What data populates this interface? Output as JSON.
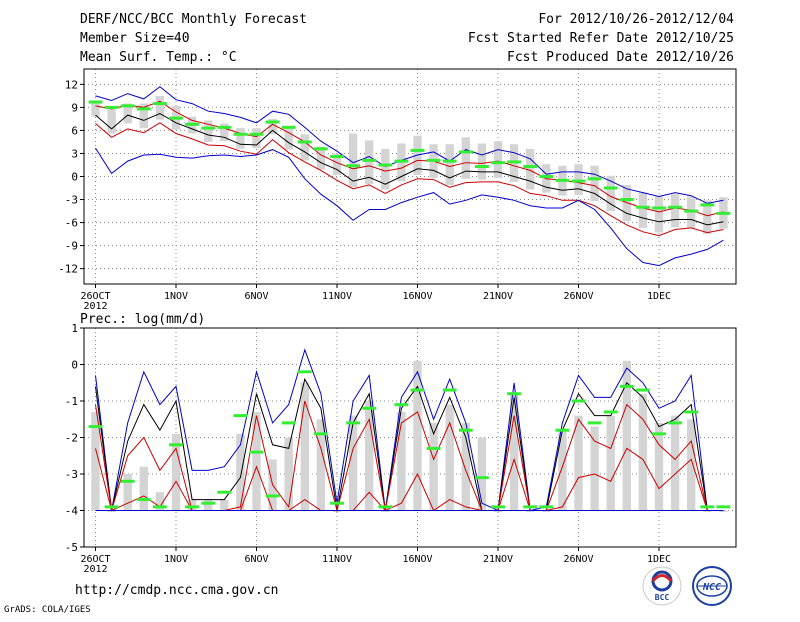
{
  "header": {
    "title": "DERF/NCC/BCC Monthly Forecast",
    "member_size": "Member Size=40",
    "variable": "Mean Surf. Temp.: °C",
    "forecast_period": "For 2012/10/26-2012/12/04",
    "start_date": "Fcst Started Refer Date 2012/10/25",
    "produced_date": "Fcst Produced Date 2012/10/26"
  },
  "footer": {
    "url": "http://cmdp.ncc.cma.gov.cn",
    "credit": "GrADS: COLA/IGES",
    "logo_left_text": "BCC",
    "logo_right_text": "NCC"
  },
  "colors": {
    "frame": "#000000",
    "grid": "#8a8a8a",
    "box": "#d4d4d4",
    "ens_mean": "#000000",
    "outer_bound": "#0000cc",
    "inner_bound": "#cc0000",
    "median": "#33ee33"
  },
  "chart_data": [
    {
      "type": "box-line",
      "title": "Mean Surf. Temp.: °C",
      "xlabel": "",
      "ylabel": "°C",
      "ylim": [
        -14,
        14
      ],
      "yticks": [
        "-12",
        "-9",
        "-6",
        "-3",
        "0",
        "3",
        "6",
        "9",
        "12"
      ],
      "ytick_values": [
        -12,
        -9,
        -6,
        -3,
        0,
        3,
        6,
        9,
        12
      ],
      "xticks": [
        "26OCT",
        "1NOV",
        "6NOV",
        "11NOV",
        "16NOV",
        "21NOV",
        "26NOV",
        "1DEC"
      ],
      "xtick_days": [
        1,
        6,
        11,
        16,
        21,
        26,
        31,
        36
      ],
      "year_label": "2012",
      "n_days": 40,
      "series": [
        {
          "name": "ensemble maximum",
          "color": "blue",
          "values": [
            10.5,
            9.9,
            10.8,
            10.1,
            11.7,
            10,
            9.5,
            8.5,
            8.2,
            7.7,
            7,
            8.5,
            8.1,
            6.4,
            4.6,
            3.3,
            1.8,
            2.6,
            1.3,
            2.1,
            2.8,
            3.2,
            2,
            3.5,
            2.8,
            3.5,
            3.1,
            2.3,
            0.3,
            0.6,
            0.6,
            0.3,
            -0.6,
            -1.6,
            -2.1,
            -2.6,
            -2.1,
            -2.5,
            -3.5,
            -3.1
          ]
        },
        {
          "name": "upper spread",
          "color": "red",
          "values": [
            9.2,
            8.8,
            9.3,
            9,
            9.8,
            8.4,
            7.3,
            6.8,
            6.3,
            5.6,
            5.2,
            6.8,
            5.7,
            4.5,
            2.8,
            1.8,
            1,
            1.4,
            0.7,
            1.1,
            2.1,
            2,
            1.3,
            1.8,
            1.7,
            2,
            1.4,
            0.8,
            -0.3,
            -0.5,
            -0.8,
            -1.2,
            -2.6,
            -3.4,
            -4.1,
            -4.6,
            -4.1,
            -4.4,
            -5.1,
            -4.6
          ]
        },
        {
          "name": "ensemble mean",
          "color": "black",
          "values": [
            8,
            6.2,
            8,
            7.3,
            8.2,
            7,
            6.2,
            5.4,
            5.1,
            4.2,
            4.1,
            6,
            4.4,
            3.2,
            1.8,
            0.9,
            -0.6,
            -0.1,
            -1,
            0,
            1,
            0.8,
            -0.2,
            0.7,
            0.6,
            0.6,
            0,
            -0.6,
            -1.4,
            -1.8,
            -1.6,
            -2.2,
            -3.6,
            -4.8,
            -5.4,
            -5.9,
            -5.6,
            -5.6,
            -6.3,
            -5.9
          ]
        },
        {
          "name": "lower spread",
          "color": "red",
          "values": [
            6.9,
            5.1,
            6.2,
            5.7,
            7,
            5.6,
            4.9,
            4.1,
            4,
            3.3,
            2.9,
            4.8,
            3.1,
            1.9,
            0.8,
            -0.5,
            -1.6,
            -1.1,
            -2.2,
            -1.1,
            -0.3,
            -0.4,
            -1.4,
            -0.8,
            -0.7,
            -0.7,
            -1.2,
            -2.2,
            -2.5,
            -3.1,
            -3.1,
            -3.8,
            -5.1,
            -6.3,
            -7.2,
            -7.7,
            -6.9,
            -6.7,
            -7.3,
            -6.9
          ]
        },
        {
          "name": "ensemble minimum",
          "color": "blue",
          "values": [
            3.7,
            0.4,
            2,
            2.8,
            2.9,
            2.5,
            2.4,
            2.7,
            2.8,
            2.6,
            2.8,
            3.5,
            2.5,
            -0.3,
            -2.3,
            -3.8,
            -5.7,
            -4.3,
            -4.3,
            -3.4,
            -2.7,
            -2.1,
            -3.6,
            -3.1,
            -2.4,
            -2.7,
            -3.1,
            -3.8,
            -4.1,
            -4.1,
            -3.1,
            -4.3,
            -6.7,
            -9.4,
            -11.2,
            -11.6,
            -10.6,
            -10.1,
            -9.5,
            -8.3
          ]
        },
        {
          "name": "median",
          "color": "green",
          "values": [
            9.7,
            9,
            9.2,
            8.8,
            9.5,
            7.6,
            6.8,
            6.3,
            6.4,
            5.5,
            5.5,
            7.1,
            6.4,
            4.5,
            3.6,
            2.6,
            1.4,
            2.1,
            1.5,
            2,
            3.4,
            2.1,
            2,
            3.2,
            1.3,
            1.8,
            1.9,
            1.3,
            0,
            -0.5,
            -0.6,
            -0.3,
            -1.5,
            -3,
            -4,
            -4.1,
            -4,
            -4.5,
            -3.7,
            -4.8
          ]
        }
      ],
      "boxes_low": [
        7.8,
        5.6,
        6.9,
        6.3,
        7.4,
        6.1,
        5.6,
        4.5,
        4.6,
        3.6,
        3.7,
        5.5,
        3.5,
        2.1,
        0.9,
        0.2,
        -1.4,
        -1,
        -1.7,
        -0.6,
        0.2,
        -0.2,
        -1.1,
        -0.3,
        -0.4,
        -0.2,
        -0.7,
        -1.7,
        -2.1,
        -2.5,
        -2.4,
        -3.2,
        -4.5,
        -5.8,
        -6.7,
        -7.3,
        -6.6,
        -6.7,
        -7.5,
        -6.8
      ],
      "boxes_high": [
        9.8,
        9.1,
        9.5,
        9.5,
        10.5,
        9.2,
        7.8,
        7.3,
        6.9,
        6.3,
        6.3,
        7.5,
        6.2,
        5.5,
        3.9,
        3,
        5.6,
        4.7,
        3.6,
        4.3,
        5.3,
        4.2,
        4.2,
        5.1,
        4.3,
        4.6,
        4.2,
        3.6,
        1.6,
        1.4,
        1.6,
        1.4,
        0.1,
        -1.1,
        -2.1,
        -2.6,
        -2.3,
        -2.6,
        -3.1,
        -2.7
      ]
    },
    {
      "type": "box-line",
      "title": "Prec.: log(mm/d)",
      "xlabel": "",
      "ylabel": "log(mm/d)",
      "ylim": [
        -5,
        1
      ],
      "yticks": [
        "-5",
        "-4",
        "-3",
        "-2",
        "-1",
        "0",
        "1"
      ],
      "ytick_values": [
        -5,
        -4,
        -3,
        -2,
        -1,
        0,
        1
      ],
      "xticks": [
        "26OCT",
        "1NOV",
        "6NOV",
        "11NOV",
        "16NOV",
        "21NOV",
        "26NOV",
        "1DEC"
      ],
      "xtick_days": [
        1,
        6,
        11,
        16,
        21,
        26,
        31,
        36
      ],
      "year_label": "2012",
      "n_days": 40,
      "series": [
        {
          "name": "ensemble maximum",
          "color": "blue",
          "values": [
            -0.3,
            -4,
            -1.6,
            -0.2,
            -1.1,
            -0.6,
            -2.9,
            -2.9,
            -2.8,
            -2.2,
            -0.2,
            -1.6,
            -1.1,
            0.4,
            -0.8,
            -3.8,
            -1,
            -0.3,
            -4,
            -0.9,
            -0.2,
            -1.5,
            -0.4,
            -1.6,
            -3.8,
            -4,
            -0.5,
            -4,
            -3.9,
            -1.6,
            -0.3,
            -0.9,
            -0.9,
            -0.1,
            -0.5,
            -1.2,
            -1,
            -0.3,
            -4,
            -4
          ]
        },
        {
          "name": "ensemble mean",
          "color": "black",
          "values": [
            -0.6,
            -4,
            -2.1,
            -1.1,
            -1.8,
            -1,
            -3.7,
            -3.7,
            -3.7,
            -3.1,
            -0.8,
            -2.2,
            -2.3,
            -0.4,
            -1.2,
            -4,
            -1.6,
            -0.8,
            -4,
            -1.2,
            -0.6,
            -1.9,
            -0.9,
            -2,
            -4,
            -4,
            -0.9,
            -4,
            -4,
            -1.8,
            -0.8,
            -1.4,
            -1.4,
            -0.5,
            -0.9,
            -1.7,
            -1.5,
            -1.1,
            -4,
            -4
          ]
        },
        {
          "name": "upper spread",
          "color": "red",
          "values": [
            -1.1,
            -4,
            -2.5,
            -2,
            -2.9,
            -2.3,
            -4,
            -4,
            -4,
            -3.9,
            -1.4,
            -3.3,
            -3.9,
            -1,
            -2.3,
            -4,
            -2.3,
            -1.5,
            -4,
            -1.6,
            -1.3,
            -2.6,
            -1.6,
            -2.9,
            -4,
            -4,
            -1.4,
            -4,
            -4,
            -2.8,
            -1.5,
            -2.1,
            -2.3,
            -1.1,
            -1.5,
            -2.2,
            -2.6,
            -2.1,
            -4,
            -4
          ]
        },
        {
          "name": "lower spread",
          "color": "red",
          "values": [
            -2.3,
            -4,
            -3.8,
            -3.6,
            -3.9,
            -3.2,
            -4,
            -4,
            -4,
            -4,
            -2.8,
            -4,
            -4,
            -3.7,
            -4,
            -4,
            -4,
            -3.5,
            -4,
            -3.8,
            -3,
            -4,
            -3.7,
            -3.9,
            -4,
            -4,
            -2.6,
            -4,
            -4,
            -3.9,
            -3.1,
            -3,
            -3.2,
            -2.3,
            -2.6,
            -3.4,
            -3,
            -2.6,
            -4,
            -4
          ]
        },
        {
          "name": "ensemble minimum",
          "color": "blue",
          "values": [
            -4,
            -4,
            -4,
            -4,
            -4,
            -4,
            -4,
            -4,
            -4,
            -4,
            -4,
            -4,
            -4,
            -4,
            -4,
            -4,
            -4,
            -4,
            -4,
            -4,
            -4,
            -4,
            -4,
            -4,
            -4,
            -4,
            -4,
            -4,
            -4,
            -4,
            -4,
            -4,
            -4,
            -4,
            -4,
            -4,
            -4,
            -4,
            -4,
            -4
          ]
        },
        {
          "name": "median",
          "color": "green",
          "values": [
            -1.7,
            -3.9,
            -3.2,
            -3.7,
            -3.9,
            -2.2,
            -3.9,
            -3.8,
            -3.5,
            -1.4,
            -2.4,
            -3.6,
            -1.6,
            -0.2,
            -1.9,
            -3.8,
            -1.6,
            -1.2,
            -3.9,
            -1.1,
            -0.7,
            -2.3,
            -0.7,
            -1.8,
            -3.1,
            -3.9,
            -0.8,
            -3.9,
            -3.9,
            -1.8,
            -1,
            -1.6,
            -1.3,
            -0.6,
            -0.7,
            -1.9,
            -1.6,
            -1.3,
            -3.9,
            -3.9
          ]
        }
      ],
      "boxes_low": [
        -4,
        -4,
        -4,
        -4,
        -4,
        -4,
        -4,
        -4,
        -4,
        -4,
        -4,
        -4,
        -4,
        -4,
        -4,
        -4,
        -4,
        -4,
        -4,
        -4,
        -4,
        -4,
        -4,
        -4,
        -4,
        -4,
        -4,
        -4,
        -4,
        -4,
        -4,
        -4,
        -4,
        -4,
        -4,
        -4,
        -4,
        -4,
        -4,
        -4
      ],
      "boxes_high": [
        -1.3,
        -4,
        -3,
        -2.8,
        -3.5,
        -1.9,
        -3.7,
        -3.7,
        -3.7,
        -1.9,
        -1.3,
        -2.6,
        -2,
        -0.5,
        -1.5,
        -4,
        -1.4,
        -1,
        -4,
        -1.3,
        0.1,
        -1.6,
        -1.1,
        -1.6,
        -2,
        -4,
        -0.8,
        -4,
        -4,
        -1.8,
        -1.4,
        -1.7,
        -1.4,
        0.1,
        -0.8,
        -1.6,
        -1.4,
        -1.5,
        -4,
        -4
      ]
    }
  ]
}
